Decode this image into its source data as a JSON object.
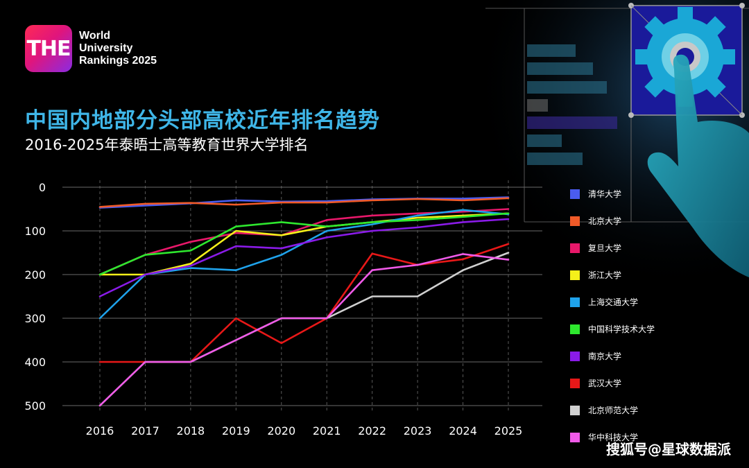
{
  "logo": {
    "badge": "THE",
    "line1": "World",
    "line2": "University",
    "line3": "Rankings 2025"
  },
  "title": "中国内地部分头部高校近年排名趋势",
  "subtitle": "2016-2025年泰晤士高等教育世界大学排名",
  "watermark": "搜狐号@星球数据派",
  "chart_data": {
    "type": "line",
    "x": [
      "2016",
      "2017",
      "2018",
      "2019",
      "2020",
      "2021",
      "2022",
      "2023",
      "2024",
      "2025"
    ],
    "ylim": [
      0,
      500
    ],
    "y_inverted": true,
    "yticks": [
      "0",
      "100",
      "200",
      "300",
      "400",
      "500"
    ],
    "grid": "horizontal solid, vertical dashed",
    "legend_position": "right",
    "series": [
      {
        "name": "清华大学",
        "color": "#4a5cf0",
        "values": [
          47,
          42,
          37,
          30,
          33,
          32,
          28,
          26,
          26,
          23
        ]
      },
      {
        "name": "北京大学",
        "color": "#f05a28",
        "values": [
          45,
          38,
          36,
          40,
          35,
          35,
          30,
          27,
          30,
          25
        ]
      },
      {
        "name": "复旦大学",
        "color": "#e8186a",
        "values": [
          200,
          155,
          125,
          105,
          110,
          75,
          65,
          60,
          56,
          50
        ]
      },
      {
        "name": "浙江大学",
        "color": "#f5f01a",
        "values": [
          200,
          200,
          175,
          100,
          110,
          90,
          80,
          70,
          65,
          60
        ]
      },
      {
        "name": "上海交通大学",
        "color": "#1fa3ec",
        "values": [
          300,
          200,
          185,
          190,
          155,
          100,
          85,
          65,
          52,
          62
        ]
      },
      {
        "name": "中国科学技术大学",
        "color": "#2ee82e",
        "values": [
          200,
          155,
          145,
          90,
          80,
          90,
          80,
          75,
          68,
          60
        ]
      },
      {
        "name": "南京大学",
        "color": "#8a1be8",
        "values": [
          250,
          200,
          180,
          135,
          140,
          115,
          100,
          92,
          80,
          73
        ]
      },
      {
        "name": "武汉大学",
        "color": "#e81818",
        "values": [
          400,
          400,
          400,
          300,
          357,
          300,
          152,
          178,
          165,
          130
        ]
      },
      {
        "name": "北京师范大学",
        "color": "#d0d0d0",
        "values": [
          500,
          400,
          400,
          350,
          300,
          300,
          250,
          250,
          190,
          150
        ]
      },
      {
        "name": "华中科技大学",
        "color": "#f05ae8",
        "values": [
          500,
          400,
          400,
          350,
          300,
          300,
          190,
          178,
          153,
          166
        ]
      }
    ]
  }
}
